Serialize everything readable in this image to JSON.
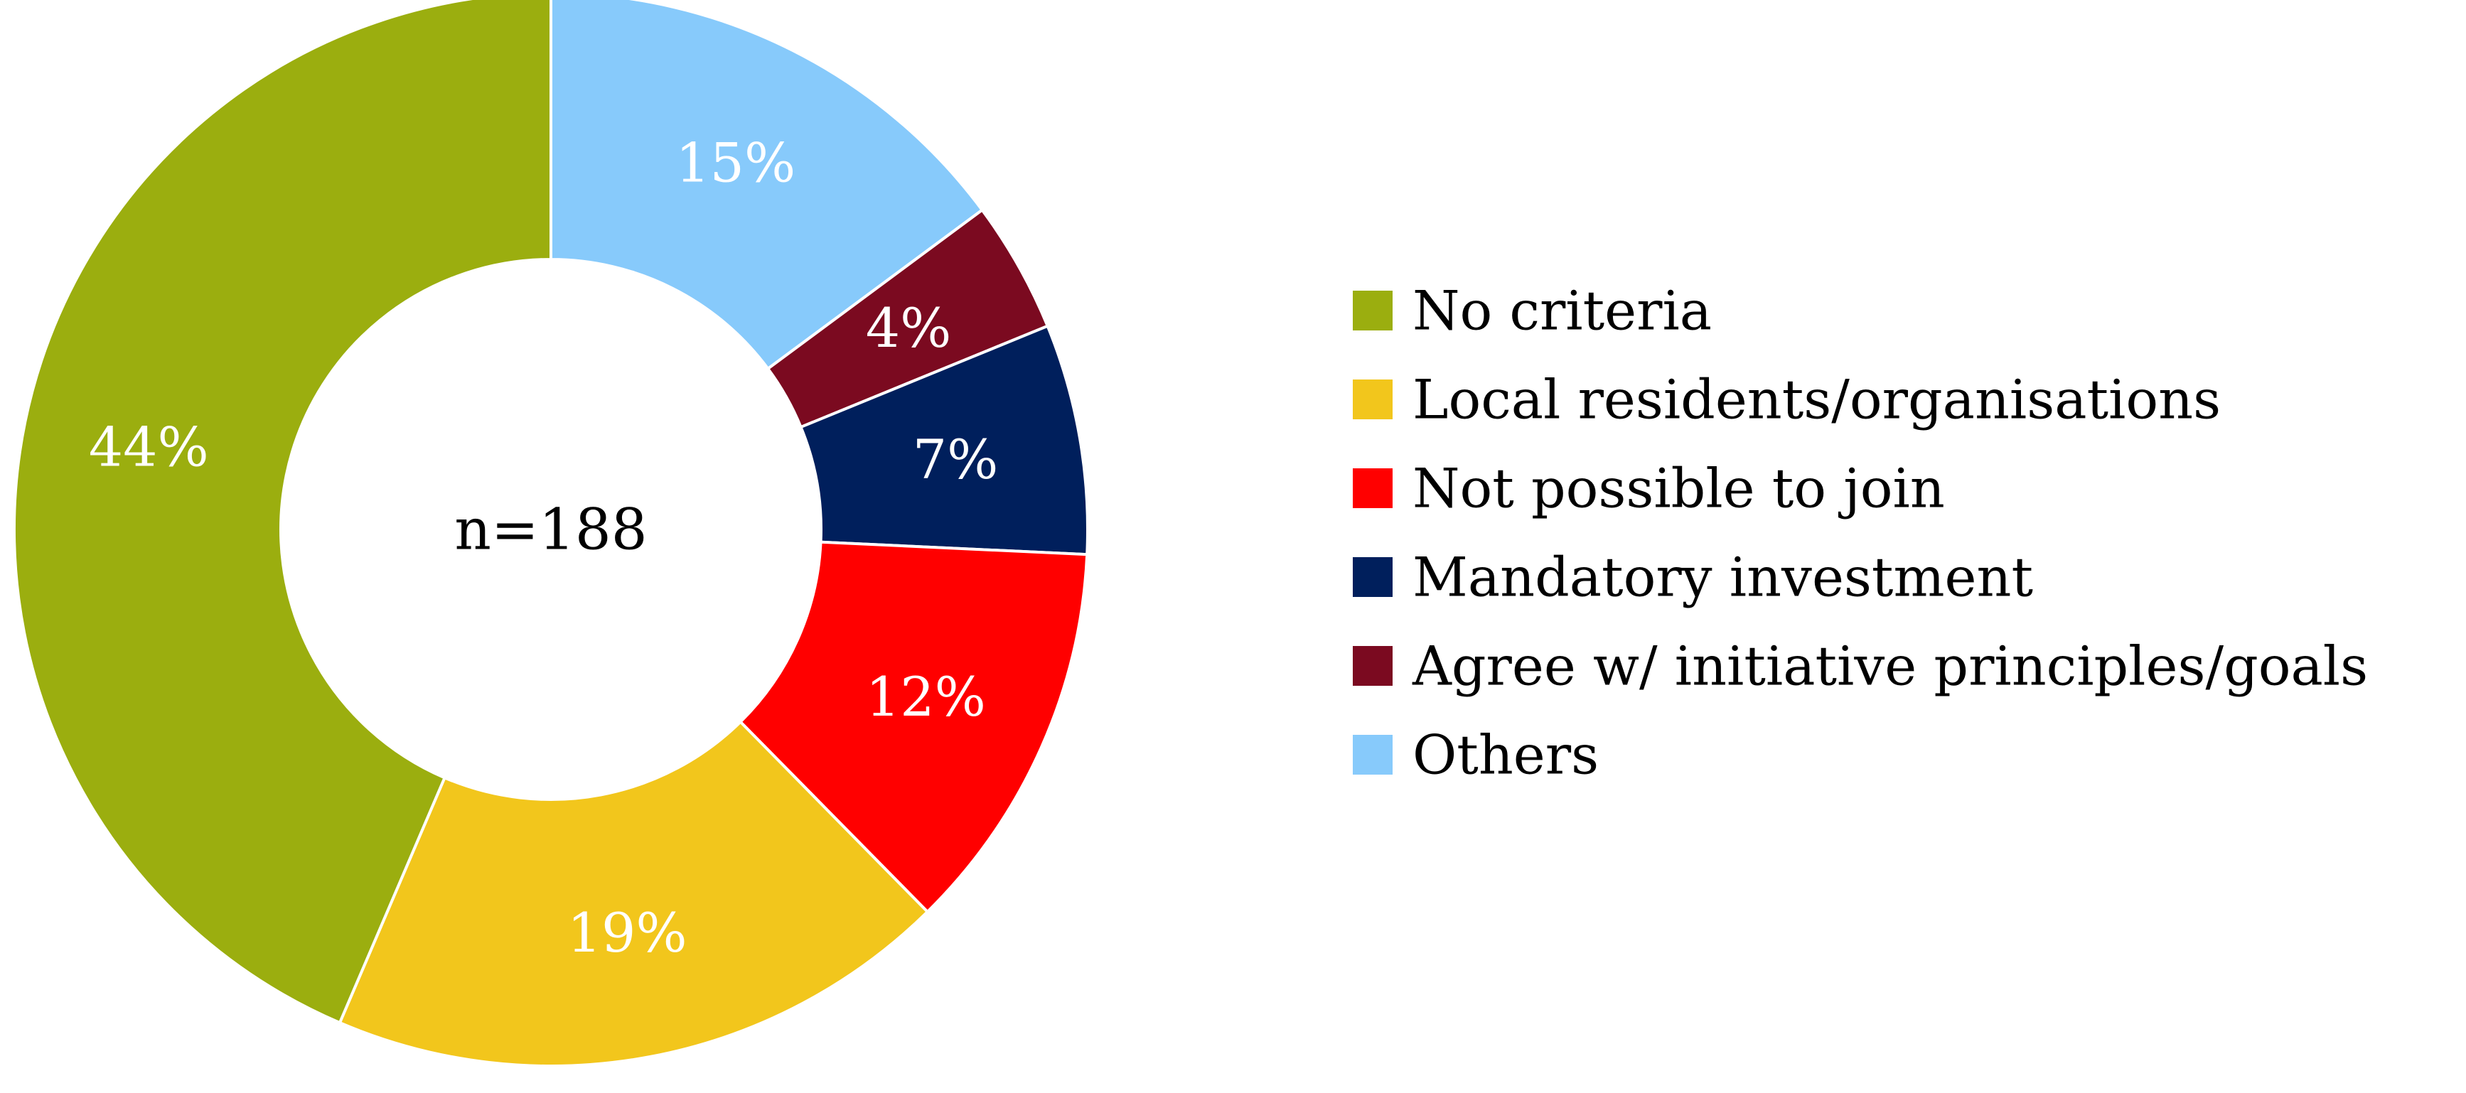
{
  "chart_data": {
    "type": "pie",
    "variant": "donut",
    "center_label": "n=188",
    "categories": [
      "Others",
      "Agree w/ initiative principles/goals",
      "Mandatory investment",
      "Not possible to join",
      "Local residents/organisations",
      "No criteria"
    ],
    "values": [
      15,
      4,
      7,
      12,
      19,
      44
    ],
    "labels": [
      "15%",
      "4%",
      "7%",
      "12%",
      "19%",
      "44%"
    ],
    "colors": [
      "#87CAFB",
      "#7B0A20",
      "#001F5C",
      "#FF0000",
      "#F2C61C",
      "#9BAE0F"
    ],
    "unit": "%",
    "legend": {
      "placement": "right",
      "entries": [
        {
          "label": "No criteria",
          "color": "#9BAE0F"
        },
        {
          "label": "Local residents/organisations",
          "color": "#F2C61C"
        },
        {
          "label": "Not possible to join",
          "color": "#FF0000"
        },
        {
          "label": "Mandatory investment",
          "color": "#001F5C"
        },
        {
          "label": "Agree w/ initiative principles/goals",
          "color": "#7B0A20"
        },
        {
          "label": "Others",
          "color": "#87CAFB"
        }
      ]
    }
  }
}
